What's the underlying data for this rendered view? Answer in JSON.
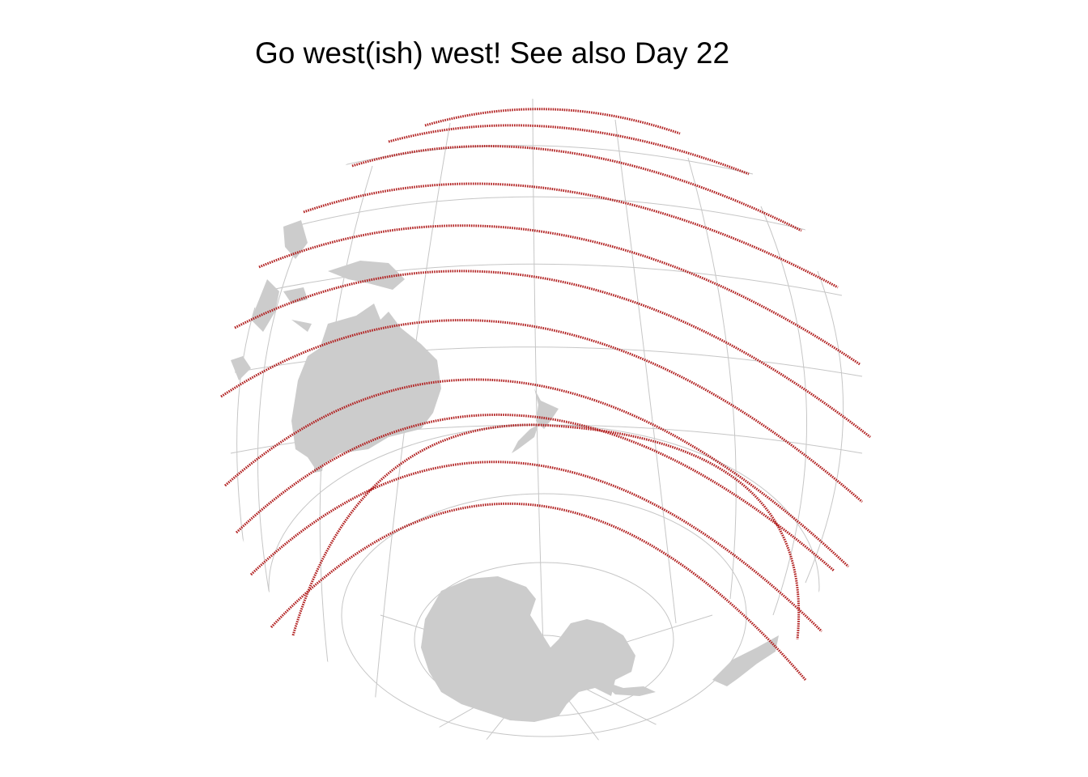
{
  "title": "Go west(ish) west! See also Day 22",
  "map": {
    "projection": "orthographic",
    "land_color": "#cccccc",
    "graticule_color": "#c6c6c6",
    "track_color": "#b22222",
    "background": "#ffffff",
    "track_count": 12,
    "visible_landmasses": [
      "Australia",
      "New Zealand",
      "New Guinea",
      "Indonesia",
      "Antarctica",
      "South America (Patagonia)"
    ]
  }
}
